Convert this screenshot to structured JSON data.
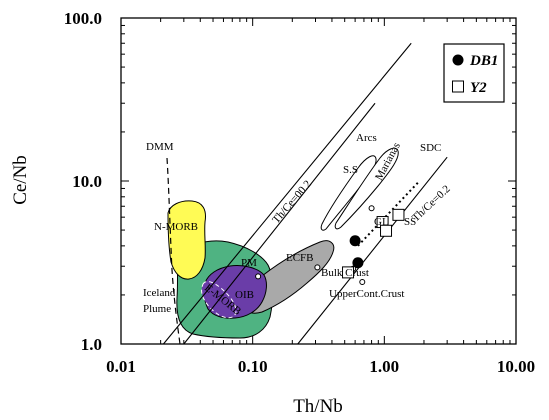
{
  "chart_data": {
    "type": "scatter",
    "xlabel": "Th/Nb",
    "ylabel": "Ce/Nb",
    "x_scale": "log",
    "y_scale": "log",
    "xlim": [
      0.01,
      10
    ],
    "ylim": [
      1,
      100
    ],
    "x_ticks": [
      "0.01",
      "0.10",
      "1.00",
      "10.00"
    ],
    "y_ticks": [
      "1.0",
      "10.0",
      "100.0"
    ],
    "grid": false,
    "legend_position": "top-right",
    "series": [
      {
        "name": "DB1",
        "marker": "filled-circle",
        "color": "#000000",
        "points": [
          [
            0.6,
            4.3
          ],
          [
            0.63,
            3.15
          ]
        ]
      },
      {
        "name": "Y2",
        "marker": "open-square",
        "color": "#ffffff",
        "points": [
          [
            0.53,
            2.75
          ],
          [
            0.97,
            5.6
          ],
          [
            1.03,
            4.95
          ],
          [
            1.28,
            6.2
          ]
        ]
      }
    ],
    "reference_points": [
      {
        "label": "PM",
        "x": 0.11,
        "y": 2.6
      },
      {
        "label": "ECFB",
        "x": 0.31,
        "y": 2.95
      },
      {
        "label": "Bulk Crust",
        "x": 0.58,
        "y": 2.9
      },
      {
        "label": "UpperCont.Crust",
        "x": 0.68,
        "y": 2.4
      },
      {
        "label": "GLOSS",
        "x": 0.8,
        "y": 6.8
      }
    ],
    "reference_lines": [
      {
        "label": "Th/Ce=00.2",
        "points": [
          [
            0.021,
            1.0
          ],
          [
            1.6,
            70.0
          ]
        ]
      },
      {
        "label": "Th/Ce=0.2",
        "points": [
          [
            0.22,
            1.0
          ],
          [
            3.0,
            14.0
          ]
        ]
      },
      {
        "label": "",
        "points": [
          [
            0.03,
            1.0
          ],
          [
            0.85,
            30.0
          ]
        ]
      },
      {
        "label": "SDC",
        "points": [
          [
            0.63,
            4.0
          ],
          [
            1.85,
            10.0
          ]
        ]
      }
    ],
    "fields": [
      {
        "label": "N-MORB",
        "color": "#fffb55"
      },
      {
        "label": "Iceland Plume",
        "color": "#4fb382"
      },
      {
        "label": "OIB",
        "color": "#6a3da8"
      },
      {
        "label": "E-MORB",
        "color": "#6a3da8"
      },
      {
        "label": "ECFB",
        "color": "#a9a9a9"
      }
    ],
    "annotations": [
      "DMM",
      "N-MORB",
      "Iceland",
      "Plume",
      "PM",
      "OIB",
      "E-MORB",
      "ECFB",
      "Bulk Crust",
      "UpperCont.Crust",
      "GL",
      "SS",
      "SDC",
      "S.S",
      "Arcs",
      "Marianas",
      "Th/Ce=00.2",
      "Th/Ce=0.2"
    ]
  }
}
